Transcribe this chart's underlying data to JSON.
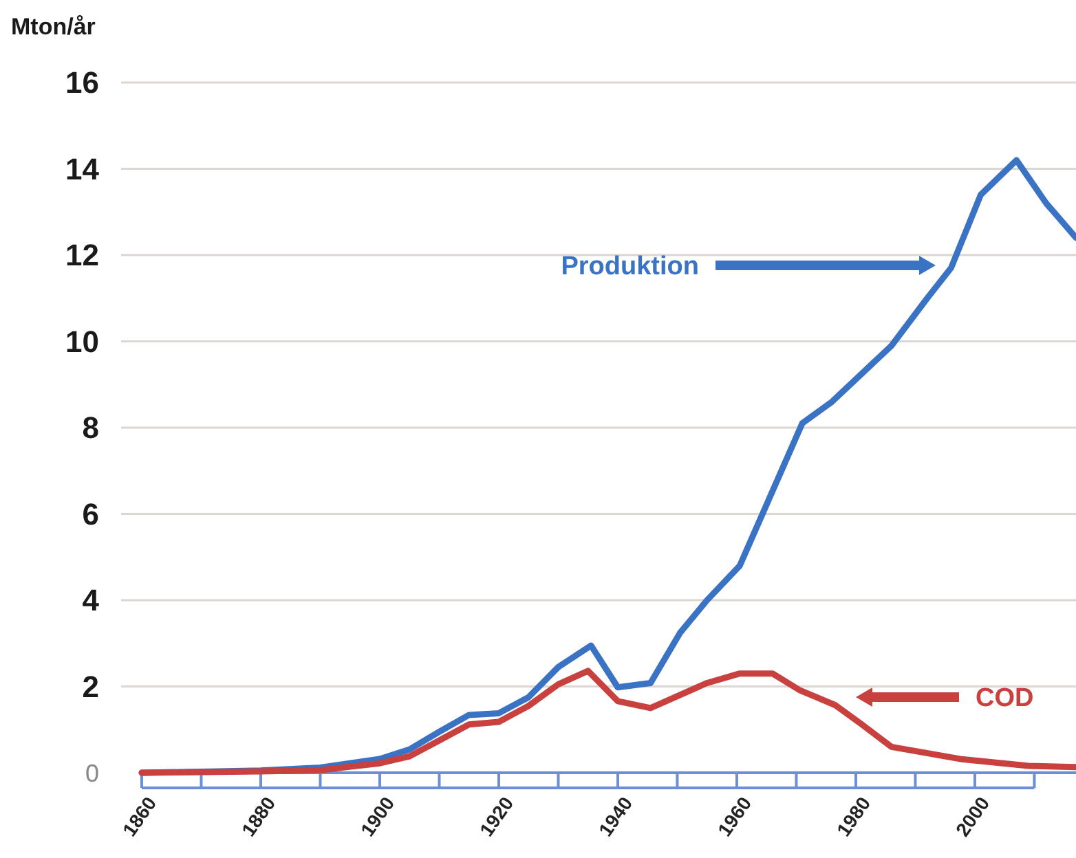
{
  "chart_data": {
    "type": "line",
    "ylabel": "Mton/år",
    "xlim": [
      1860,
      2017
    ],
    "ylim": [
      0,
      16
    ],
    "xticks": [
      1860,
      {
        "value": 1870,
        "label": null
      },
      1880,
      {
        "value": 1890,
        "label": null
      },
      1900,
      {
        "value": 1910,
        "label": null
      },
      1920,
      {
        "value": 1930,
        "label": null
      },
      1940,
      {
        "value": 1950,
        "label": null
      },
      1960,
      {
        "value": 1970,
        "label": null
      },
      1980,
      {
        "value": 1990,
        "label": null
      },
      2000,
      {
        "value": 2010,
        "label": null
      }
    ],
    "yticks": [
      0,
      2,
      4,
      6,
      8,
      10,
      12,
      14,
      16
    ],
    "grid": "y",
    "legend": "right",
    "marker": "none",
    "line_style": "solid",
    "series": [
      {
        "name": "Produktion",
        "color": "#3a72c4",
        "x": [
          1860,
          1880,
          1890,
          1900,
          1905,
          1910,
          1915,
          1920,
          1925,
          1930,
          1935.5,
          1940,
          1945.5,
          1950.5,
          1955,
          1960.5,
          1971,
          1976,
          1986,
          1992,
          1996,
          2001,
          2007,
          2012,
          2017
        ],
        "values": [
          0,
          0.05,
          0.12,
          0.32,
          0.54,
          0.95,
          1.34,
          1.38,
          1.75,
          2.45,
          2.95,
          1.98,
          2.08,
          3.25,
          4,
          4.8,
          8.1,
          8.6,
          9.9,
          11,
          11.7,
          13.4,
          14.2,
          13.2,
          12.4
        ]
      },
      {
        "name": "COD",
        "color": "#c8413f",
        "x": [
          1860,
          1880,
          1890,
          1900,
          1905,
          1910,
          1915,
          1920,
          1925,
          1930,
          1935,
          1940,
          1945.5,
          1955,
          1960.5,
          1966,
          1970.5,
          1976.5,
          1981,
          1986,
          1997.5,
          2009,
          2017
        ],
        "values": [
          0,
          0.03,
          0.06,
          0.22,
          0.38,
          0.75,
          1.12,
          1.18,
          1.55,
          2.05,
          2.36,
          1.66,
          1.5,
          2.08,
          2.3,
          2.3,
          1.92,
          1.57,
          1.12,
          0.6,
          0.32,
          0.16,
          0.13
        ]
      }
    ]
  }
}
